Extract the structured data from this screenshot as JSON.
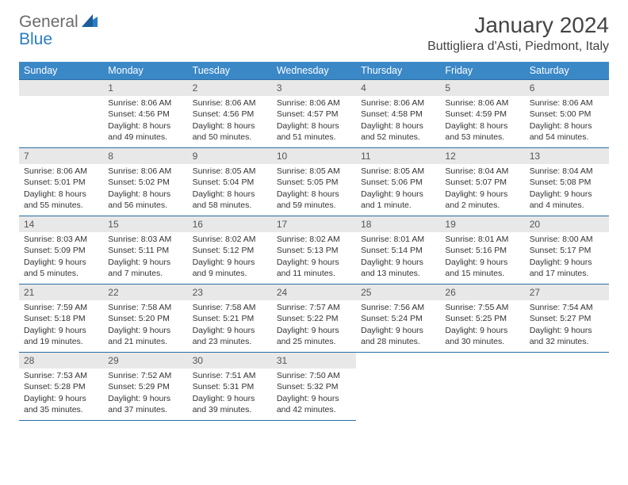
{
  "logo": {
    "textA": "General",
    "textB": "Blue"
  },
  "title": "January 2024",
  "location": "Buttigliera d'Asti, Piedmont, Italy",
  "colors": {
    "header_bg": "#3b88c7",
    "header_text": "#ffffff",
    "daynum_bg": "#e8e8e8",
    "cell_border": "#2a6ea5",
    "body_bg": "#ffffff",
    "text": "#333333",
    "logo_gray": "#6b6b6b",
    "logo_blue": "#2a7dc4"
  },
  "weekdays": [
    "Sunday",
    "Monday",
    "Tuesday",
    "Wednesday",
    "Thursday",
    "Friday",
    "Saturday"
  ],
  "weeks": [
    [
      null,
      {
        "n": "1",
        "sr": "Sunrise: 8:06 AM",
        "ss": "Sunset: 4:56 PM",
        "d1": "Daylight: 8 hours",
        "d2": "and 49 minutes."
      },
      {
        "n": "2",
        "sr": "Sunrise: 8:06 AM",
        "ss": "Sunset: 4:56 PM",
        "d1": "Daylight: 8 hours",
        "d2": "and 50 minutes."
      },
      {
        "n": "3",
        "sr": "Sunrise: 8:06 AM",
        "ss": "Sunset: 4:57 PM",
        "d1": "Daylight: 8 hours",
        "d2": "and 51 minutes."
      },
      {
        "n": "4",
        "sr": "Sunrise: 8:06 AM",
        "ss": "Sunset: 4:58 PM",
        "d1": "Daylight: 8 hours",
        "d2": "and 52 minutes."
      },
      {
        "n": "5",
        "sr": "Sunrise: 8:06 AM",
        "ss": "Sunset: 4:59 PM",
        "d1": "Daylight: 8 hours",
        "d2": "and 53 minutes."
      },
      {
        "n": "6",
        "sr": "Sunrise: 8:06 AM",
        "ss": "Sunset: 5:00 PM",
        "d1": "Daylight: 8 hours",
        "d2": "and 54 minutes."
      }
    ],
    [
      {
        "n": "7",
        "sr": "Sunrise: 8:06 AM",
        "ss": "Sunset: 5:01 PM",
        "d1": "Daylight: 8 hours",
        "d2": "and 55 minutes."
      },
      {
        "n": "8",
        "sr": "Sunrise: 8:06 AM",
        "ss": "Sunset: 5:02 PM",
        "d1": "Daylight: 8 hours",
        "d2": "and 56 minutes."
      },
      {
        "n": "9",
        "sr": "Sunrise: 8:05 AM",
        "ss": "Sunset: 5:04 PM",
        "d1": "Daylight: 8 hours",
        "d2": "and 58 minutes."
      },
      {
        "n": "10",
        "sr": "Sunrise: 8:05 AM",
        "ss": "Sunset: 5:05 PM",
        "d1": "Daylight: 8 hours",
        "d2": "and 59 minutes."
      },
      {
        "n": "11",
        "sr": "Sunrise: 8:05 AM",
        "ss": "Sunset: 5:06 PM",
        "d1": "Daylight: 9 hours",
        "d2": "and 1 minute."
      },
      {
        "n": "12",
        "sr": "Sunrise: 8:04 AM",
        "ss": "Sunset: 5:07 PM",
        "d1": "Daylight: 9 hours",
        "d2": "and 2 minutes."
      },
      {
        "n": "13",
        "sr": "Sunrise: 8:04 AM",
        "ss": "Sunset: 5:08 PM",
        "d1": "Daylight: 9 hours",
        "d2": "and 4 minutes."
      }
    ],
    [
      {
        "n": "14",
        "sr": "Sunrise: 8:03 AM",
        "ss": "Sunset: 5:09 PM",
        "d1": "Daylight: 9 hours",
        "d2": "and 5 minutes."
      },
      {
        "n": "15",
        "sr": "Sunrise: 8:03 AM",
        "ss": "Sunset: 5:11 PM",
        "d1": "Daylight: 9 hours",
        "d2": "and 7 minutes."
      },
      {
        "n": "16",
        "sr": "Sunrise: 8:02 AM",
        "ss": "Sunset: 5:12 PM",
        "d1": "Daylight: 9 hours",
        "d2": "and 9 minutes."
      },
      {
        "n": "17",
        "sr": "Sunrise: 8:02 AM",
        "ss": "Sunset: 5:13 PM",
        "d1": "Daylight: 9 hours",
        "d2": "and 11 minutes."
      },
      {
        "n": "18",
        "sr": "Sunrise: 8:01 AM",
        "ss": "Sunset: 5:14 PM",
        "d1": "Daylight: 9 hours",
        "d2": "and 13 minutes."
      },
      {
        "n": "19",
        "sr": "Sunrise: 8:01 AM",
        "ss": "Sunset: 5:16 PM",
        "d1": "Daylight: 9 hours",
        "d2": "and 15 minutes."
      },
      {
        "n": "20",
        "sr": "Sunrise: 8:00 AM",
        "ss": "Sunset: 5:17 PM",
        "d1": "Daylight: 9 hours",
        "d2": "and 17 minutes."
      }
    ],
    [
      {
        "n": "21",
        "sr": "Sunrise: 7:59 AM",
        "ss": "Sunset: 5:18 PM",
        "d1": "Daylight: 9 hours",
        "d2": "and 19 minutes."
      },
      {
        "n": "22",
        "sr": "Sunrise: 7:58 AM",
        "ss": "Sunset: 5:20 PM",
        "d1": "Daylight: 9 hours",
        "d2": "and 21 minutes."
      },
      {
        "n": "23",
        "sr": "Sunrise: 7:58 AM",
        "ss": "Sunset: 5:21 PM",
        "d1": "Daylight: 9 hours",
        "d2": "and 23 minutes."
      },
      {
        "n": "24",
        "sr": "Sunrise: 7:57 AM",
        "ss": "Sunset: 5:22 PM",
        "d1": "Daylight: 9 hours",
        "d2": "and 25 minutes."
      },
      {
        "n": "25",
        "sr": "Sunrise: 7:56 AM",
        "ss": "Sunset: 5:24 PM",
        "d1": "Daylight: 9 hours",
        "d2": "and 28 minutes."
      },
      {
        "n": "26",
        "sr": "Sunrise: 7:55 AM",
        "ss": "Sunset: 5:25 PM",
        "d1": "Daylight: 9 hours",
        "d2": "and 30 minutes."
      },
      {
        "n": "27",
        "sr": "Sunrise: 7:54 AM",
        "ss": "Sunset: 5:27 PM",
        "d1": "Daylight: 9 hours",
        "d2": "and 32 minutes."
      }
    ],
    [
      {
        "n": "28",
        "sr": "Sunrise: 7:53 AM",
        "ss": "Sunset: 5:28 PM",
        "d1": "Daylight: 9 hours",
        "d2": "and 35 minutes."
      },
      {
        "n": "29",
        "sr": "Sunrise: 7:52 AM",
        "ss": "Sunset: 5:29 PM",
        "d1": "Daylight: 9 hours",
        "d2": "and 37 minutes."
      },
      {
        "n": "30",
        "sr": "Sunrise: 7:51 AM",
        "ss": "Sunset: 5:31 PM",
        "d1": "Daylight: 9 hours",
        "d2": "and 39 minutes."
      },
      {
        "n": "31",
        "sr": "Sunrise: 7:50 AM",
        "ss": "Sunset: 5:32 PM",
        "d1": "Daylight: 9 hours",
        "d2": "and 42 minutes."
      },
      null,
      null,
      null
    ]
  ]
}
